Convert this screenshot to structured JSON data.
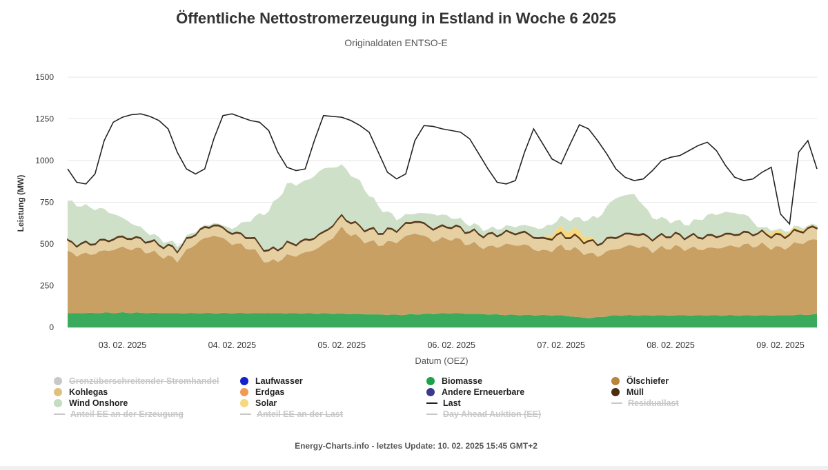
{
  "header": {
    "title": "Öffentliche Nettostromerzeugung in Estland in Woche 6 2025",
    "subtitle": "Originaldaten ENTSO-E"
  },
  "footer": {
    "text": "Energy-Charts.info - letztes Update: 10. 02. 2025 15:45 GMT+2"
  },
  "chart_data": {
    "type": "area",
    "xlabel": "Datum (OEZ)",
    "ylabel": "Leistung (MW)",
    "ylim": [
      0,
      1500
    ],
    "yticks": [
      0,
      250,
      500,
      750,
      1000,
      1250,
      1500
    ],
    "x_tick_labels": [
      "03. 02. 2025",
      "04. 02. 2025",
      "05. 02. 2025",
      "06. 02. 2025",
      "07. 02. 2025",
      "08. 02. 2025",
      "09. 02. 2025"
    ],
    "x_unit": "hours since 03. 02. 2025 00:00",
    "x_range": [
      0,
      164
    ],
    "grid": true,
    "legend_placement": "bottom",
    "stack_order": [
      "Biomasse",
      "Ölschiefer",
      "Kohlegas",
      "Müll",
      "Solar",
      "Wind Onshore"
    ],
    "series": [
      {
        "name": "Biomasse",
        "color": "#3aaa5c",
        "x": [
          0,
          12,
          24,
          36,
          48,
          60,
          72,
          84,
          96,
          108,
          114,
          120,
          132,
          144,
          156,
          164
        ],
        "values": [
          85,
          88,
          85,
          85,
          85,
          82,
          75,
          85,
          75,
          72,
          55,
          72,
          72,
          72,
          72,
          78
        ]
      },
      {
        "name": "Ölschiefer",
        "color": "#c9a064",
        "x": [
          0,
          4,
          8,
          12,
          16,
          20,
          24,
          28,
          32,
          36,
          40,
          44,
          48,
          52,
          56,
          60,
          64,
          68,
          72,
          76,
          80,
          84,
          88,
          92,
          96,
          100,
          104,
          108,
          112,
          116,
          120,
          124,
          128,
          132,
          136,
          140,
          144,
          148,
          152,
          156,
          160,
          164
        ],
        "values": [
          360,
          350,
          370,
          390,
          380,
          350,
          320,
          420,
          470,
          420,
          390,
          300,
          340,
          360,
          410,
          510,
          450,
          420,
          440,
          490,
          440,
          450,
          420,
          400,
          420,
          420,
          380,
          410,
          400,
          370,
          400,
          420,
          390,
          410,
          400,
          400,
          410,
          420,
          420,
          400,
          430,
          450
        ]
      },
      {
        "name": "Kohlegas",
        "color": "#e6d0a2",
        "x": [
          0,
          12,
          24,
          36,
          48,
          60,
          72,
          84,
          96,
          108,
          120,
          132,
          144,
          156,
          164
        ],
        "values": [
          60,
          60,
          60,
          60,
          70,
          70,
          70,
          70,
          70,
          70,
          70,
          70,
          70,
          70,
          70
        ]
      },
      {
        "name": "Müll",
        "color": "#5a3b1e",
        "x": [
          0,
          164
        ],
        "values": [
          8,
          8
        ]
      },
      {
        "name": "Solar",
        "color": "#f9d77e",
        "x": [
          0,
          104,
          108,
          112,
          116,
          120,
          152,
          154,
          164
        ],
        "values": [
          0,
          0,
          35,
          40,
          0,
          0,
          0,
          20,
          0
        ]
      },
      {
        "name": "Wind Onshore",
        "color": "#cfe0c9",
        "x": [
          0,
          4,
          8,
          12,
          16,
          20,
          24,
          28,
          32,
          36,
          40,
          44,
          48,
          52,
          56,
          60,
          64,
          68,
          72,
          76,
          80,
          84,
          88,
          92,
          96,
          100,
          104,
          108,
          112,
          116,
          120,
          124,
          128,
          132,
          136,
          140,
          144,
          148,
          152,
          156,
          160,
          164
        ],
        "values": [
          240,
          220,
          180,
          110,
          60,
          30,
          20,
          10,
          5,
          20,
          100,
          240,
          350,
          350,
          380,
          300,
          260,
          150,
          60,
          40,
          80,
          50,
          40,
          30,
          30,
          40,
          60,
          60,
          70,
          150,
          230,
          230,
          120,
          80,
          70,
          120,
          130,
          110,
          20,
          10,
          10,
          10
        ]
      },
      {
        "name": "Last",
        "color": "#222222",
        "type": "line",
        "x": [
          0,
          2,
          4,
          6,
          8,
          10,
          12,
          14,
          16,
          18,
          20,
          22,
          24,
          26,
          28,
          30,
          32,
          34,
          36,
          38,
          40,
          42,
          44,
          46,
          48,
          50,
          52,
          54,
          56,
          58,
          60,
          62,
          64,
          66,
          68,
          70,
          72,
          74,
          76,
          78,
          80,
          82,
          84,
          86,
          88,
          90,
          92,
          94,
          96,
          98,
          100,
          102,
          104,
          106,
          108,
          110,
          112,
          114,
          116,
          118,
          120,
          122,
          124,
          126,
          128,
          130,
          132,
          134,
          136,
          138,
          140,
          142,
          144,
          146,
          148,
          150,
          152,
          154,
          156,
          158,
          160,
          162,
          164
        ],
        "values": [
          950,
          870,
          860,
          920,
          1120,
          1230,
          1260,
          1275,
          1280,
          1265,
          1240,
          1190,
          1050,
          950,
          920,
          950,
          1130,
          1270,
          1280,
          1260,
          1240,
          1230,
          1180,
          1050,
          960,
          940,
          950,
          1120,
          1270,
          1265,
          1260,
          1240,
          1210,
          1170,
          1050,
          930,
          890,
          920,
          1120,
          1210,
          1205,
          1190,
          1180,
          1170,
          1130,
          1040,
          950,
          870,
          860,
          880,
          1050,
          1190,
          1100,
          1010,
          980,
          1100,
          1215,
          1190,
          1120,
          1040,
          950,
          900,
          880,
          890,
          940,
          1000,
          1020,
          1030,
          1060,
          1090,
          1110,
          1060,
          970,
          900,
          880,
          890,
          930,
          960,
          680,
          620,
          1050,
          1120,
          950
        ]
      },
      {
        "name": "Grenzüberschreitender Stromhandel",
        "color": "#c8c8c8",
        "hidden": true
      },
      {
        "name": "Laufwasser",
        "color": "#1422c8",
        "hidden": false,
        "values": []
      },
      {
        "name": "Erdgas",
        "color": "#f29a52",
        "hidden": false,
        "values": []
      },
      {
        "name": "Andere Erneuerbare",
        "color": "#3a3a8c",
        "hidden": false,
        "values": []
      },
      {
        "name": "Anteil EE an der Erzeugung",
        "hidden": true
      },
      {
        "name": "Anteil EE an der Last",
        "hidden": true
      },
      {
        "name": "Day Ahead Auktion (EE)",
        "hidden": true
      },
      {
        "name": "Residuallast",
        "hidden": true
      }
    ]
  },
  "legend": [
    {
      "label": "Grenzüberschreitender Stromhandel",
      "kind": "dot",
      "color": "#c8c8c8",
      "off": true
    },
    {
      "label": "Laufwasser",
      "kind": "dot",
      "color": "#1422c8",
      "off": false
    },
    {
      "label": "Biomasse",
      "kind": "dot",
      "color": "#1aa34a",
      "off": false
    },
    {
      "label": "Ölschiefer",
      "kind": "dot",
      "color": "#b9843c",
      "off": false
    },
    {
      "label": "Kohlegas",
      "kind": "dot",
      "color": "#e0c07a",
      "off": false
    },
    {
      "label": "Erdgas",
      "kind": "dot",
      "color": "#f29a52",
      "off": false
    },
    {
      "label": "Andere Erneuerbare",
      "kind": "dot",
      "color": "#3a3a8c",
      "off": false
    },
    {
      "label": "Müll",
      "kind": "dot",
      "color": "#4a2e12",
      "off": false
    },
    {
      "label": "Wind Onshore",
      "kind": "dot",
      "color": "#c4dcc0",
      "off": false
    },
    {
      "label": "Solar",
      "kind": "dot",
      "color": "#f9d77e",
      "off": false
    },
    {
      "label": "Last",
      "kind": "line",
      "color": "#222222",
      "off": false
    },
    {
      "label": "Residuallast",
      "kind": "line",
      "color": "#c8c8c8",
      "off": true
    },
    {
      "label": "Anteil EE an der Erzeugung",
      "kind": "line",
      "color": "#c8c8c8",
      "off": true
    },
    {
      "label": "Anteil EE an der Last",
      "kind": "line",
      "color": "#c8c8c8",
      "off": true
    },
    {
      "label": "Day Ahead Auktion (EE)",
      "kind": "line",
      "color": "#c8c8c8",
      "off": true
    }
  ]
}
